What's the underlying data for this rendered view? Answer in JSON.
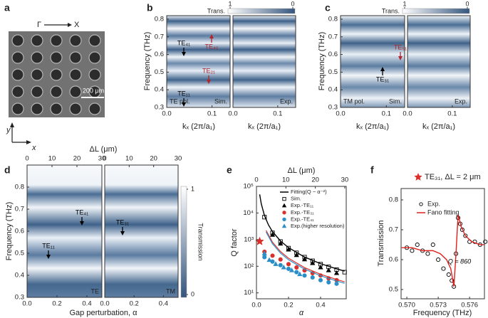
{
  "panel_labels": [
    "a",
    "b",
    "c",
    "d",
    "e",
    "f"
  ],
  "sem_image": {
    "direction_from": "Γ",
    "direction_to": "X",
    "scale_bar": "200 μm",
    "axis_y": "y",
    "axis_x": "x"
  },
  "chart_data": [
    {
      "type": "heatmap",
      "ylabel": "Frequency (THz)",
      "xlabel": "kₓ (2π/a₁)",
      "ylim": [
        0.3,
        0.82
      ],
      "yticks": [
        0.3,
        0.4,
        0.5,
        0.6,
        0.7,
        0.8
      ],
      "colorbar": {
        "title": "Trans.",
        "lim": [
          1,
          0
        ],
        "ticks": [
          1,
          0
        ]
      },
      "subplots": [
        {
          "xlim": [
            0,
            0.14
          ],
          "xticks": [
            {
              "value": 0,
              "label": "0.0"
            },
            0.1
          ],
          "labels": [
            "TE pol.",
            "Sim."
          ]
        },
        {
          "xlim": [
            0,
            0.14
          ],
          "xticks": [
            {
              "value": 0,
              "label": "0.0"
            },
            0.1
          ],
          "labels": [
            "Exp."
          ]
        }
      ],
      "annotations": [
        {
          "text": "TE₄₁",
          "color": "#000000"
        },
        {
          "text": "TE₄₀",
          "color": "#b0262c"
        },
        {
          "text": "TE₂₁",
          "color": "#b0262c"
        },
        {
          "text": "TE₁₁",
          "color": "#000000"
        }
      ]
    },
    {
      "type": "heatmap",
      "ylabel": "Frequency (THz)",
      "xlabel": "kₓ (2π/a₁)",
      "ylim": [
        0.3,
        0.82
      ],
      "yticks": [
        0.3,
        0.4,
        0.5,
        0.6,
        0.7,
        0.8
      ],
      "colorbar": {
        "title": "Trans.",
        "lim": [
          1,
          0
        ],
        "ticks": [
          1,
          0
        ]
      },
      "subplots": [
        {
          "xlim": [
            0,
            0.14
          ],
          "xticks": [
            {
              "value": 0,
              "label": "0.0"
            },
            0.1
          ],
          "labels": [
            "TM pol.",
            "Sim."
          ]
        },
        {
          "xlim": [
            0,
            0.14
          ],
          "xticks": [
            {
              "value": 0,
              "label": "0.0"
            },
            0.1
          ],
          "labels": [
            "Exp."
          ]
        }
      ],
      "annotations": [
        {
          "text": "TE₅₁",
          "color": "#b0262c"
        },
        {
          "text": "TE₃₁",
          "color": "#000000"
        }
      ]
    },
    {
      "type": "heatmap",
      "ylabel": "Frequency (THz)",
      "xlabel": "Gap perturbation, α",
      "x2label": "ΔL (μm)",
      "ylim": [
        0.3,
        0.9
      ],
      "yticks": [
        0.3,
        0.4,
        0.5,
        0.6,
        0.7,
        0.8
      ],
      "colorbar": {
        "title": "Transmission",
        "lim": [
          1,
          0
        ],
        "ticks": [
          1,
          0
        ]
      },
      "subplots": [
        {
          "xlim": [
            0,
            0.5
          ],
          "xticks": [
            {
              "value": 0,
              "label": "0.0"
            },
            0.2,
            0.4
          ],
          "x2lim": [
            0,
            30
          ],
          "x2ticks": [
            0,
            10,
            20,
            30
          ],
          "labels": [
            "TE"
          ]
        },
        {
          "xlim": [
            0,
            0.5
          ],
          "xticks": [
            {
              "value": 0,
              "label": "0.0"
            },
            0.2,
            0.4
          ],
          "x2lim": [
            0,
            30
          ],
          "x2ticks": [
            0,
            10,
            20,
            30
          ],
          "labels": [
            "TM"
          ]
        }
      ],
      "annotations": [
        {
          "text": "TE₄₁",
          "color": "#000000"
        },
        {
          "text": "TE₃₁",
          "color": "#000000"
        },
        {
          "text": "TE₁₁",
          "color": "#000000"
        }
      ]
    },
    {
      "type": "scatter",
      "ylabel": "Q factor",
      "xlabel": "α",
      "x2label": "ΔL (μm)",
      "log_y": true,
      "xlim": [
        0,
        0.56
      ],
      "xticks": [
        {
          "value": 0,
          "label": "0.0"
        },
        0.2,
        0.4
      ],
      "x2lim": [
        0,
        30.5
      ],
      "x2ticks": [
        0,
        10,
        20,
        30
      ],
      "ylim": [
        6,
        100000
      ],
      "yticks": [
        {
          "value": 10,
          "label": "10¹"
        },
        {
          "value": 100,
          "label": "10²"
        },
        {
          "value": 1000,
          "label": "10³"
        },
        {
          "value": 10000,
          "label": "10⁴"
        },
        {
          "value": 100000,
          "label": "10⁵"
        }
      ],
      "series": [
        {
          "name": "Fitting(Q ~ α⁻²)",
          "color": "#000000",
          "marker": "line",
          "x": [
            0.02,
            0.03,
            0.05,
            0.075,
            0.1,
            0.15,
            0.2,
            0.3,
            0.4,
            0.5,
            0.55
          ],
          "values": [
            50000,
            22222,
            8000,
            3556,
            2000,
            889,
            500,
            222,
            125,
            80,
            66
          ]
        },
        {
          "name": "Sim.",
          "color": "#000000",
          "marker": "square",
          "filled": false,
          "x": [
            0.05,
            0.1,
            0.15,
            0.2,
            0.25,
            0.3,
            0.35,
            0.4,
            0.45,
            0.5,
            0.55
          ],
          "values": [
            7000,
            1800,
            850,
            480,
            320,
            220,
            160,
            120,
            95,
            75,
            60
          ]
        },
        {
          "name": "Exp.-TE₁₁",
          "color": "#000000",
          "marker": "triangle",
          "filled": true,
          "x": [
            0.1,
            0.15,
            0.2,
            0.25,
            0.3,
            0.35,
            0.4,
            0.45,
            0.5
          ],
          "values": [
            1500,
            700,
            420,
            260,
            180,
            130,
            90,
            70,
            55
          ]
        },
        {
          "name": "Exp.-TE₃₁",
          "color": "#d9302b",
          "marker": "circle",
          "filled": true,
          "x": [
            0.05,
            0.1,
            0.15,
            0.2,
            0.25,
            0.3,
            0.35,
            0.4,
            0.45,
            0.5
          ],
          "values": [
            350,
            250,
            180,
            120,
            90,
            70,
            55,
            45,
            35,
            30
          ],
          "fit_x": [
            0.06,
            0.1,
            0.15,
            0.2,
            0.3,
            0.4,
            0.5,
            0.55
          ],
          "fit_values": [
            2222,
            800,
            356,
            200,
            89,
            50,
            32,
            26
          ]
        },
        {
          "name": "Exp.-TE₄₁",
          "color": "#2a8fc8",
          "marker": "circle",
          "filled": true,
          "x": [
            0.05,
            0.1,
            0.15,
            0.2,
            0.25,
            0.3,
            0.35,
            0.4,
            0.45,
            0.5
          ],
          "values": [
            220,
            150,
            110,
            80,
            60,
            45,
            38,
            30,
            25,
            22
          ],
          "fit_x": [
            0.06,
            0.1,
            0.15,
            0.2,
            0.3,
            0.4,
            0.5,
            0.55
          ],
          "fit_values": [
            1944,
            700,
            311,
            175,
            78,
            44,
            28,
            23
          ]
        },
        {
          "name": "Exp.(higher resolution)",
          "color": "#2a8fc8",
          "marker": "triangle",
          "filled": true,
          "x": [
            0.05,
            0.08,
            0.12,
            0.17,
            0.22,
            0.27
          ],
          "values": [
            300,
            170,
            120,
            90,
            70,
            50
          ]
        }
      ],
      "highlight": {
        "x": 0.02,
        "value": 860,
        "color": "#d9302b"
      }
    },
    {
      "type": "line",
      "title": "TE₃₁, ΔL = 2 μm",
      "ylabel": "Transmission",
      "xlabel": "Frequency (THz)",
      "xlim": [
        0.56945,
        0.57742
      ],
      "xticks": [
        {
          "value": 0.57,
          "label": "0.570"
        },
        0.573,
        0.576
      ],
      "ylim": [
        0.469,
        0.838
      ],
      "yticks": [
        0.5,
        0.6,
        0.7,
        0.8
      ],
      "series": [
        {
          "name": "Exp.",
          "color": "#000000",
          "marker": "circle",
          "filled": false,
          "x": [
            0.57,
            0.5705,
            0.571,
            0.5715,
            0.572,
            0.5725,
            0.573,
            0.5735,
            0.574,
            0.5743,
            0.5745,
            0.5747,
            0.5749,
            0.5751,
            0.5753,
            0.5756,
            0.576,
            0.5765,
            0.577,
            0.5775
          ],
          "values": [
            0.64,
            0.63,
            0.65,
            0.63,
            0.62,
            0.65,
            0.6,
            0.57,
            0.55,
            0.53,
            0.51,
            0.62,
            0.74,
            0.72,
            0.7,
            0.68,
            0.66,
            0.66,
            0.65,
            0.66
          ]
        },
        {
          "name": "Fano fitting",
          "color": "#e0201b",
          "marker": "line",
          "x": [
            0.5695,
            0.5705,
            0.5715,
            0.5725,
            0.5732,
            0.5738,
            0.5742,
            0.5745,
            0.5747,
            0.5749,
            0.5752,
            0.5756,
            0.5762,
            0.577,
            0.5774
          ],
          "values": [
            0.64,
            0.64,
            0.63,
            0.63,
            0.62,
            0.6,
            0.57,
            0.51,
            0.62,
            0.75,
            0.71,
            0.68,
            0.66,
            0.65,
            0.65
          ]
        }
      ],
      "annotations": [
        {
          "text": "Q = 860",
          "color": "#000000"
        }
      ]
    }
  ]
}
